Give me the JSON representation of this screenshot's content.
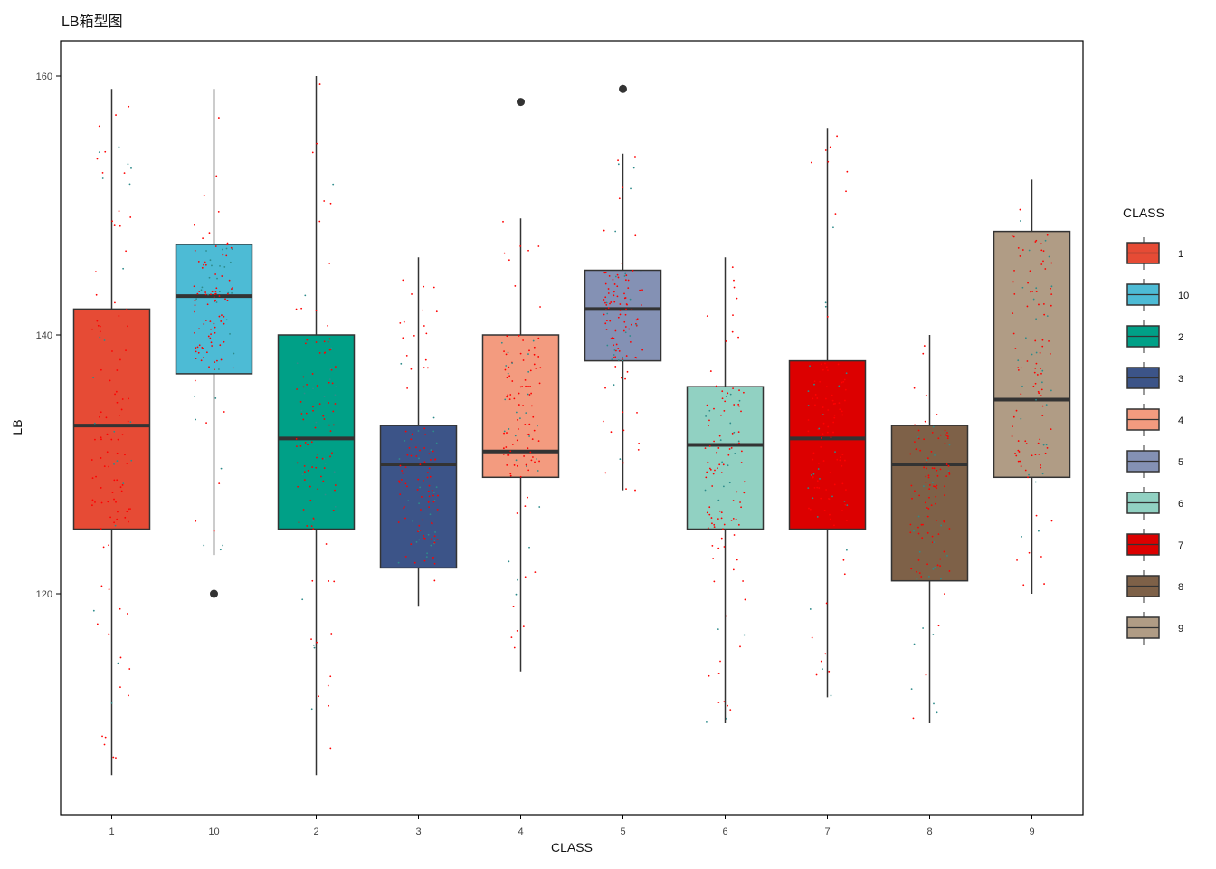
{
  "chart_data": {
    "type": "box",
    "title": "LB箱型图",
    "xlabel": "CLASS",
    "ylabel": "LB",
    "ylim": [
      102.9,
      162.7
    ],
    "yticks": [
      120,
      140,
      160
    ],
    "categories": [
      "1",
      "10",
      "2",
      "3",
      "4",
      "5",
      "6",
      "7",
      "8",
      "9"
    ],
    "boxes": [
      {
        "class": "1",
        "whisker_low": 106,
        "q1": 125,
        "median": 133,
        "q3": 142,
        "whisker_high": 159,
        "outliers": [],
        "color": "#E64B35"
      },
      {
        "class": "10",
        "whisker_low": 123,
        "q1": 137,
        "median": 143,
        "q3": 147,
        "whisker_high": 159,
        "outliers": [
          120
        ],
        "color": "#4DBBD5"
      },
      {
        "class": "2",
        "whisker_low": 106,
        "q1": 125,
        "median": 132,
        "q3": 140,
        "whisker_high": 160,
        "outliers": [],
        "color": "#00A087"
      },
      {
        "class": "3",
        "whisker_low": 119,
        "q1": 122,
        "median": 130,
        "q3": 133,
        "whisker_high": 146,
        "outliers": [],
        "color": "#3C5488"
      },
      {
        "class": "4",
        "whisker_low": 114,
        "q1": 129,
        "median": 131,
        "q3": 140,
        "whisker_high": 149,
        "outliers": [
          158
        ],
        "color": "#F39B7F"
      },
      {
        "class": "5",
        "whisker_low": 128,
        "q1": 138,
        "median": 142,
        "q3": 145,
        "whisker_high": 154,
        "outliers": [
          159
        ],
        "color": "#8491B4"
      },
      {
        "class": "6",
        "whisker_low": 110,
        "q1": 125,
        "median": 131.5,
        "q3": 136,
        "whisker_high": 146,
        "outliers": [],
        "color": "#91D1C2"
      },
      {
        "class": "7",
        "whisker_low": 112,
        "q1": 125,
        "median": 132,
        "q3": 138,
        "whisker_high": 156,
        "outliers": [],
        "color": "#DC0000"
      },
      {
        "class": "8",
        "whisker_low": 110,
        "q1": 121,
        "median": 130,
        "q3": 133,
        "whisker_high": 140,
        "outliers": [],
        "color": "#7E6148"
      },
      {
        "class": "9",
        "whisker_low": 120,
        "q1": 129,
        "median": 135,
        "q3": 148,
        "whisker_high": 152,
        "outliers": [],
        "color": "#B09C85"
      }
    ],
    "jitter_colors": [
      "#FF0000",
      "#2E8B8B"
    ],
    "grid": false,
    "legend": {
      "title": "CLASS",
      "position": "right",
      "entries": [
        "1",
        "10",
        "2",
        "3",
        "4",
        "5",
        "6",
        "7",
        "8",
        "9"
      ]
    }
  }
}
